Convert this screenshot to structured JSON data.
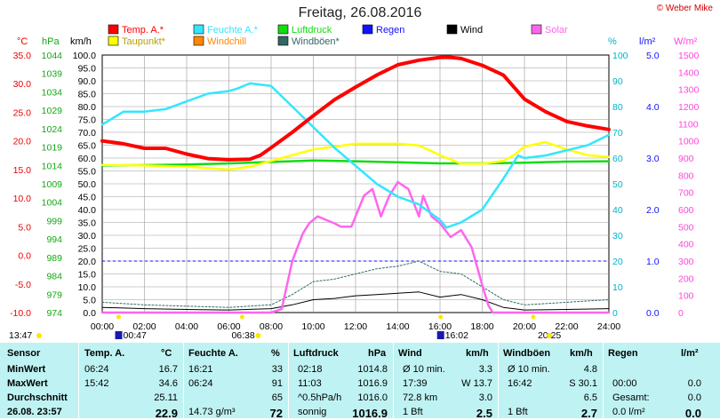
{
  "title": "Freitag, 26.08.2016",
  "copyright": "© Weber Mike",
  "units": {
    "temp": "°C",
    "pressure": "hPa",
    "wind": "km/h",
    "humidity": "%",
    "rain": "l/m²",
    "solar": "W/m²"
  },
  "legend": [
    {
      "label": "Temp. A.*",
      "color": "#ff0000"
    },
    {
      "label": "Feuchte A.*",
      "color": "#33e6ff"
    },
    {
      "label": "Luftdruck",
      "color": "#11dd11"
    },
    {
      "label": "Regen",
      "color": "#1111ff"
    },
    {
      "label": "Wind",
      "color": "#000000"
    },
    {
      "label": "Solar",
      "color": "#ff66ee"
    },
    {
      "label": "Taupunkt*",
      "color": "#ffff00"
    },
    {
      "label": "Windchill",
      "color": "#ff8800"
    },
    {
      "label": "Windböen*",
      "color": "#336666"
    }
  ],
  "axis_ticks": {
    "temp": [
      "35.0",
      "30.0",
      "25.0",
      "20.0",
      "15.0",
      "10.0",
      "5.0",
      "0.0",
      "-5.0",
      "-10.0"
    ],
    "pressure": [
      "1044",
      "1039",
      "1034",
      "1029",
      "1024",
      "1019",
      "1014",
      "1009",
      "1004",
      "999",
      "994",
      "989",
      "984",
      "979",
      "974"
    ],
    "wind": [
      "100.0",
      "95.0",
      "90.0",
      "85.0",
      "80.0",
      "75.0",
      "70.0",
      "65.0",
      "60.0",
      "55.0",
      "50.0",
      "45.0",
      "40.0",
      "35.0",
      "30.0",
      "25.0",
      "20.0",
      "15.0",
      "10.0",
      "5.0",
      "0.0"
    ],
    "humidity": [
      "100",
      "90",
      "80",
      "70",
      "60",
      "50",
      "40",
      "30",
      "20",
      "10",
      "0"
    ],
    "rain": [
      "5.0",
      "4.0",
      "3.0",
      "2.0",
      "1.0",
      "0.0"
    ],
    "solar": [
      "1500",
      "1400",
      "1300",
      "1200",
      "1100",
      "1000",
      "900",
      "800",
      "700",
      "600",
      "500",
      "400",
      "300",
      "200",
      "100",
      "0"
    ],
    "time": [
      "00:00",
      "02:00",
      "04:00",
      "06:00",
      "08:00",
      "10:00",
      "12:00",
      "14:00",
      "16:00",
      "18:00",
      "20:00",
      "22:00",
      "24:00"
    ]
  },
  "sun_marks": {
    "sunrise_label": "13:47",
    "t1": "00:47",
    "t2": "06:38",
    "t3": "16:02",
    "t4": "20:25"
  },
  "chart_data": {
    "type": "line",
    "title": "Freitag, 26.08.2016",
    "x_unit": "hours",
    "xlim": [
      0,
      24
    ],
    "series": [
      {
        "name": "Temp. A.*",
        "color": "#ff0000",
        "axis": "temp",
        "ylim": [
          -10,
          35
        ],
        "x": [
          0,
          1,
          2,
          3,
          4,
          5,
          6,
          7,
          7.5,
          8,
          9,
          10,
          11,
          12,
          13,
          14,
          15,
          16,
          16.5,
          17,
          18,
          19,
          20,
          21,
          22,
          23,
          24
        ],
        "y": [
          20,
          19.5,
          18.7,
          18.7,
          17.7,
          16.9,
          16.7,
          16.8,
          17.5,
          18.8,
          21.5,
          24.4,
          27.2,
          29.4,
          31.5,
          33.3,
          34.1,
          34.6,
          34.6,
          34.4,
          33.2,
          31.5,
          27.3,
          25.1,
          23.4,
          22.6,
          22.0
        ]
      },
      {
        "name": "Feuchte A.*",
        "color": "#33e6ff",
        "axis": "humidity",
        "ylim": [
          0,
          100
        ],
        "x": [
          0,
          1,
          2,
          3,
          4,
          5,
          6,
          6.4,
          7,
          8,
          9,
          10,
          11,
          12,
          13,
          14,
          15,
          16,
          16.3,
          17,
          18,
          19,
          19.7,
          20,
          21,
          22,
          23,
          24
        ],
        "y": [
          73,
          78,
          78,
          79,
          82,
          85,
          86,
          87,
          89,
          88,
          80,
          72,
          64,
          57,
          50,
          45,
          42,
          36,
          33,
          35,
          40,
          52,
          61,
          60,
          61,
          63,
          65,
          69
        ]
      },
      {
        "name": "Luftdruck",
        "color": "#11dd11",
        "axis": "pressure",
        "ylim": [
          974,
          1046.5
        ],
        "x": [
          0,
          2,
          4,
          6,
          8,
          10,
          12,
          14,
          16,
          18,
          20,
          22,
          24
        ],
        "y": [
          1015.4,
          1015.5,
          1015.7,
          1016.0,
          1016.4,
          1016.8,
          1016.6,
          1016.3,
          1016.0,
          1016.0,
          1016.2,
          1016.5,
          1016.6
        ]
      },
      {
        "name": "Taupunkt*",
        "color": "#ffff00",
        "axis": "temp",
        "ylim": [
          -10,
          35
        ],
        "x": [
          0,
          2,
          4,
          6,
          7,
          8,
          10,
          12,
          14,
          15,
          16,
          17,
          18,
          19,
          19.5,
          20,
          21,
          22,
          23,
          24
        ],
        "y": [
          15.8,
          15.7,
          15.5,
          15.0,
          15.5,
          16.5,
          18.5,
          19.5,
          19.5,
          19.2,
          17.5,
          16.0,
          16.0,
          16.5,
          17.5,
          19.0,
          19.8,
          18.5,
          17.5,
          17.2
        ]
      },
      {
        "name": "Solar",
        "color": "#ff66ee",
        "axis": "solar",
        "ylim": [
          0,
          1500
        ],
        "x": [
          0,
          7,
          8,
          8.5,
          9,
          9.5,
          9.8,
          10.2,
          10.6,
          11,
          11.3,
          11.8,
          12,
          12.4,
          12.8,
          13.2,
          13.6,
          14,
          14.5,
          15,
          15.2,
          15.6,
          16,
          16.5,
          17,
          17.5,
          18,
          18.3,
          18.5,
          19,
          24
        ],
        "y": [
          0,
          0,
          0,
          20,
          300,
          460,
          520,
          560,
          540,
          520,
          500,
          500,
          560,
          680,
          720,
          560,
          680,
          760,
          720,
          560,
          680,
          560,
          520,
          440,
          480,
          380,
          160,
          40,
          0,
          0,
          0
        ]
      },
      {
        "name": "Wind",
        "color": "#000000",
        "axis": "wind",
        "ylim": [
          0,
          100
        ],
        "x": [
          0,
          2,
          4,
          6,
          8,
          9,
          10,
          11,
          12,
          13,
          14,
          15,
          16,
          17,
          18,
          19,
          20,
          22,
          24
        ],
        "y": [
          2,
          1.5,
          1.2,
          1.0,
          1.5,
          3,
          5,
          5.5,
          6.5,
          7,
          7.5,
          8,
          6,
          7,
          5,
          2,
          1,
          1.2,
          1.5
        ]
      },
      {
        "name": "Windböen*",
        "color": "#336666",
        "axis": "wind",
        "ylim": [
          0,
          100
        ],
        "x": [
          0,
          2,
          4,
          6,
          8,
          9,
          10,
          11,
          12,
          13,
          14,
          15,
          16,
          17,
          18,
          19,
          20,
          22,
          24
        ],
        "y": [
          4,
          3,
          2.5,
          2,
          3,
          7,
          12,
          13,
          15,
          17,
          18,
          20,
          16,
          15,
          10,
          5,
          3,
          4,
          5
        ]
      }
    ]
  },
  "stats": {
    "col_headers": {
      "sensor": "Sensor",
      "temp": "Temp. A.",
      "temp_unit": "°C",
      "hum": "Feuchte A.",
      "hum_unit": "%",
      "press": "Luftdruck",
      "press_unit": "hPa",
      "wind": "Wind",
      "wind_unit": "km/h",
      "gust": "Windböen",
      "gust_unit": "km/h",
      "rain": "Regen",
      "rain_unit": "l/m²"
    },
    "rows": [
      {
        "label": "MinWert",
        "temp_t": "06:24",
        "temp_v": "16.7",
        "hum_t": "16:21",
        "hum_v": "33",
        "press_t": "02:18",
        "press_v": "1014.8",
        "wind_t": "Ø 10 min.",
        "wind_v": "3.3",
        "gust_t": "Ø 10 min.",
        "gust_v": "4.8",
        "rain_t": "",
        "rain_v": ""
      },
      {
        "label": "MaxWert",
        "temp_t": "15:42",
        "temp_v": "34.6",
        "hum_t": "06:24",
        "hum_v": "91",
        "press_t": "11:03",
        "press_v": "1016.9",
        "wind_t": "17:39",
        "wind_v": "W 13.7",
        "gust_t": "16:42",
        "gust_v": "S 30.1",
        "rain_t": "00:00",
        "rain_v": "0.0"
      },
      {
        "label": "Durchschnitt",
        "temp_t": "",
        "temp_v": "25.11",
        "hum_t": "",
        "hum_v": "65",
        "press_t": "^0.5hPa/h",
        "press_v": "1016.0",
        "wind_t": "72.8 km",
        "wind_v": "3.0",
        "gust_t": "",
        "gust_v": "6.5",
        "rain_t": "Gesamt:",
        "rain_v": "0.0"
      },
      {
        "label": "26.08. 23:57",
        "temp_t": "",
        "temp_v": "22.9",
        "hum_t": "14.73 g/m³",
        "hum_v": "72",
        "press_t": "sonnig",
        "press_v": "1016.9",
        "wind_t": "1 Bft",
        "wind_v": "2.5",
        "gust_t": "1 Bft",
        "gust_v": "2.7",
        "rain_t": "0.0 l/m²",
        "rain_v": "0.0"
      }
    ]
  }
}
